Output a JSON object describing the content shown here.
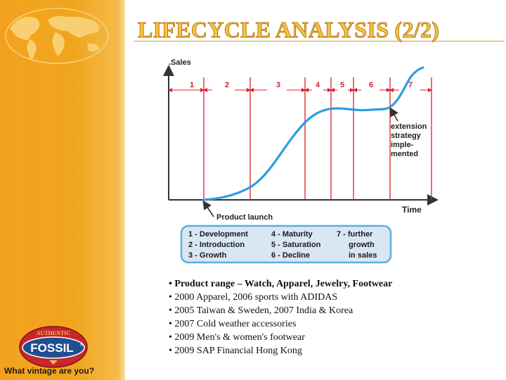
{
  "slide": {
    "title": "LIFECYCLE ANALYSIS (2/2)"
  },
  "diagram": {
    "y_axis_label": ".Sales",
    "x_axis_label": "Time",
    "stages": [
      "1",
      "2",
      "3",
      "4",
      "5",
      "6",
      "7"
    ],
    "launch_label": "Product launch",
    "annotation": [
      "extension",
      "strategy",
      "imple-",
      "mented"
    ],
    "legend": {
      "col1": [
        "1 - Development",
        "2 - Introduction",
        "3 - Growth"
      ],
      "col2": [
        "4 - Maturity",
        "5 - Saturation",
        "6 - Decline"
      ],
      "col3": [
        "7 - further",
        "growth",
        "in sales"
      ]
    },
    "colors": {
      "boundaries": "#d81e2b",
      "curve": "#2a9ee0",
      "legend_bg": "#d9e6f3",
      "legend_border": "#5aaedf"
    }
  },
  "bullets": [
    "• Product range – Watch, Apparel, Jewelry, Footwear",
    "• 2000 Apparel, 2006 sports with ADIDAS",
    "• 2005 Taiwan & Sweden, 2007 India & Korea",
    "• 2007 Cold weather accessories",
    "• 2009 Men's & women's footwear",
    "• 2009 SAP Financial Hong Kong"
  ],
  "logo": {
    "top_text": "AUTHENTIC",
    "brand": "FOSSIL",
    "registered": "®",
    "tagline": "What vintage are you?"
  }
}
